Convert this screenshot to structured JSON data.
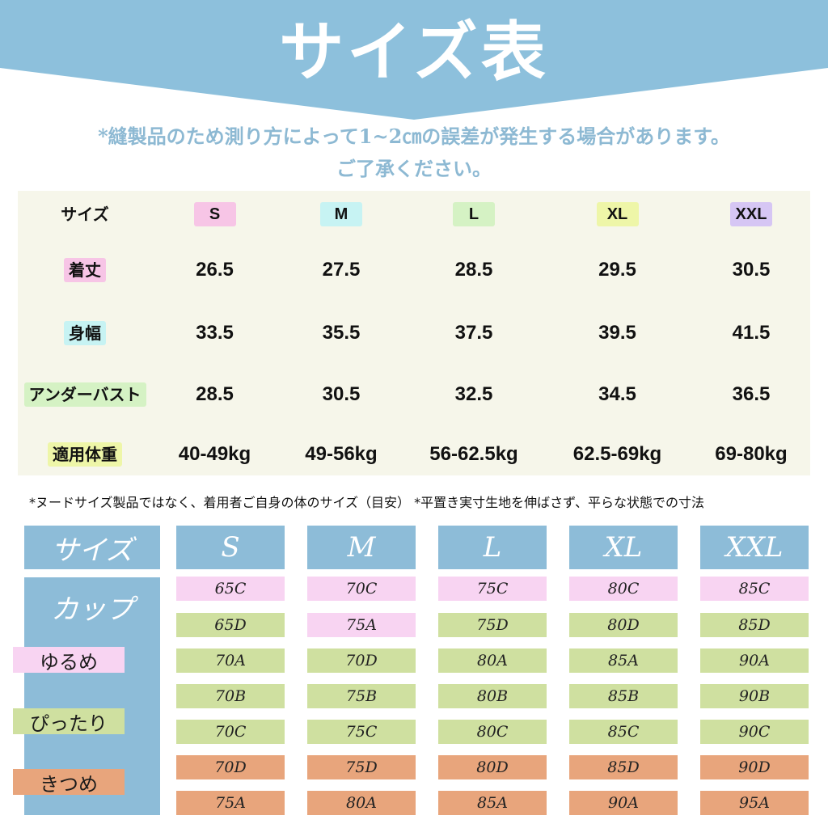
{
  "header": {
    "title": "サイズ表",
    "notice_line1": "*縫製品のため測り方によって1~2㎝の誤差が発生する場合があります。",
    "notice_line2": "ご了承ください。"
  },
  "measurements": {
    "sizes": [
      "S",
      "M",
      "L",
      "XL",
      "XXL"
    ],
    "size_header_label": "サイズ",
    "size_colors": [
      "#f7c5e6",
      "#c7f3f3",
      "#d5f2c4",
      "#eef6a8",
      "#d6c6f4"
    ],
    "rows": [
      {
        "label": "着丈",
        "label_color": "#f7c5e6",
        "values": [
          "26.5",
          "27.5",
          "28.5",
          "29.5",
          "30.5"
        ]
      },
      {
        "label": "身幅",
        "label_color": "#c7f3f3",
        "values": [
          "33.5",
          "35.5",
          "37.5",
          "39.5",
          "41.5"
        ]
      },
      {
        "label": "アンダーバスト",
        "label_color": "#d5f2c4",
        "values": [
          "28.5",
          "30.5",
          "32.5",
          "34.5",
          "36.5"
        ]
      },
      {
        "label": "適用体重",
        "label_color": "#eef6a8",
        "values": [
          "40-49kg",
          "49-56kg",
          "56-62.5kg",
          "62.5-69kg",
          "69-80kg"
        ]
      }
    ]
  },
  "footnote": "*ヌードサイズ製品ではなく、着用者ご自身の体のサイズ（目安） *平置き実寸生地を伸ばさず、平らな状態での寸法",
  "cup_table": {
    "size_label": "サイズ",
    "sizes": [
      "S",
      "M",
      "L",
      "XL",
      "XXL"
    ],
    "cup_label": "カップ",
    "fits": [
      {
        "label": "ゆるめ",
        "color": "#f8d4f2"
      },
      {
        "label": "ぴったり",
        "color": "#cfe0a0"
      },
      {
        "label": "きつめ",
        "color": "#e8a57c"
      }
    ],
    "header_color": "#8dbcd8",
    "rows": [
      {
        "fit": "ゆるめ",
        "color": "#f8d4f2",
        "values": [
          "65C",
          "70C",
          "75C",
          "80C",
          "85C"
        ]
      },
      {
        "fit": "mixed",
        "colors": [
          "#cfe0a0",
          "#f8d4f2",
          "#cfe0a0",
          "#cfe0a0",
          "#cfe0a0"
        ],
        "values": [
          "65D",
          "75A",
          "75D",
          "80D",
          "85D"
        ]
      },
      {
        "fit": "ぴったり",
        "color": "#cfe0a0",
        "values": [
          "70A",
          "70D",
          "80A",
          "85A",
          "90A"
        ]
      },
      {
        "fit": "ぴったり",
        "color": "#cfe0a0",
        "values": [
          "70B",
          "75B",
          "80B",
          "85B",
          "90B"
        ]
      },
      {
        "fit": "ぴったり",
        "color": "#cfe0a0",
        "values": [
          "70C",
          "75C",
          "80C",
          "85C",
          "90C"
        ]
      },
      {
        "fit": "きつめ",
        "color": "#e8a57c",
        "values": [
          "70D",
          "75D",
          "80D",
          "85D",
          "90D"
        ]
      },
      {
        "fit": "きつめ",
        "color": "#e8a57c",
        "values": [
          "75A",
          "80A",
          "85A",
          "90A",
          "95A"
        ]
      }
    ]
  }
}
